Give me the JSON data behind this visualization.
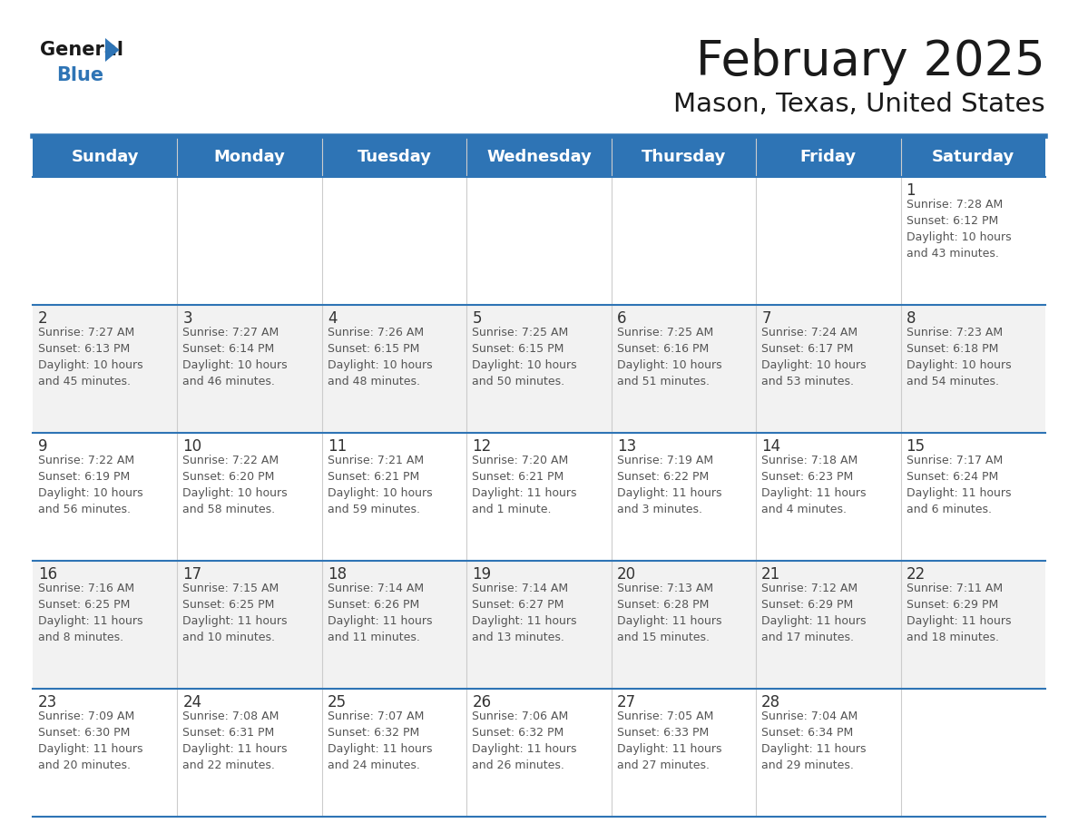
{
  "title": "February 2025",
  "subtitle": "Mason, Texas, United States",
  "header_bg_color": "#2E74B5",
  "header_text_color": "#FFFFFF",
  "day_names": [
    "Sunday",
    "Monday",
    "Tuesday",
    "Wednesday",
    "Thursday",
    "Friday",
    "Saturday"
  ],
  "bg_color": "#FFFFFF",
  "cell_bg_light": "#F2F2F2",
  "cell_bg_white": "#FFFFFF",
  "separator_color": "#2E74B5",
  "day_number_color": "#333333",
  "cell_text_color": "#555555",
  "logo_triangle_color": "#2E74B5",
  "title_fontsize": 38,
  "subtitle_fontsize": 21,
  "header_fontsize": 13,
  "day_num_fontsize": 12,
  "cell_fontsize": 9,
  "weeks": [
    [
      {
        "day": 0,
        "text": ""
      },
      {
        "day": 0,
        "text": ""
      },
      {
        "day": 0,
        "text": ""
      },
      {
        "day": 0,
        "text": ""
      },
      {
        "day": 0,
        "text": ""
      },
      {
        "day": 0,
        "text": ""
      },
      {
        "day": 1,
        "text": "Sunrise: 7:28 AM\nSunset: 6:12 PM\nDaylight: 10 hours\nand 43 minutes."
      }
    ],
    [
      {
        "day": 2,
        "text": "Sunrise: 7:27 AM\nSunset: 6:13 PM\nDaylight: 10 hours\nand 45 minutes."
      },
      {
        "day": 3,
        "text": "Sunrise: 7:27 AM\nSunset: 6:14 PM\nDaylight: 10 hours\nand 46 minutes."
      },
      {
        "day": 4,
        "text": "Sunrise: 7:26 AM\nSunset: 6:15 PM\nDaylight: 10 hours\nand 48 minutes."
      },
      {
        "day": 5,
        "text": "Sunrise: 7:25 AM\nSunset: 6:15 PM\nDaylight: 10 hours\nand 50 minutes."
      },
      {
        "day": 6,
        "text": "Sunrise: 7:25 AM\nSunset: 6:16 PM\nDaylight: 10 hours\nand 51 minutes."
      },
      {
        "day": 7,
        "text": "Sunrise: 7:24 AM\nSunset: 6:17 PM\nDaylight: 10 hours\nand 53 minutes."
      },
      {
        "day": 8,
        "text": "Sunrise: 7:23 AM\nSunset: 6:18 PM\nDaylight: 10 hours\nand 54 minutes."
      }
    ],
    [
      {
        "day": 9,
        "text": "Sunrise: 7:22 AM\nSunset: 6:19 PM\nDaylight: 10 hours\nand 56 minutes."
      },
      {
        "day": 10,
        "text": "Sunrise: 7:22 AM\nSunset: 6:20 PM\nDaylight: 10 hours\nand 58 minutes."
      },
      {
        "day": 11,
        "text": "Sunrise: 7:21 AM\nSunset: 6:21 PM\nDaylight: 10 hours\nand 59 minutes."
      },
      {
        "day": 12,
        "text": "Sunrise: 7:20 AM\nSunset: 6:21 PM\nDaylight: 11 hours\nand 1 minute."
      },
      {
        "day": 13,
        "text": "Sunrise: 7:19 AM\nSunset: 6:22 PM\nDaylight: 11 hours\nand 3 minutes."
      },
      {
        "day": 14,
        "text": "Sunrise: 7:18 AM\nSunset: 6:23 PM\nDaylight: 11 hours\nand 4 minutes."
      },
      {
        "day": 15,
        "text": "Sunrise: 7:17 AM\nSunset: 6:24 PM\nDaylight: 11 hours\nand 6 minutes."
      }
    ],
    [
      {
        "day": 16,
        "text": "Sunrise: 7:16 AM\nSunset: 6:25 PM\nDaylight: 11 hours\nand 8 minutes."
      },
      {
        "day": 17,
        "text": "Sunrise: 7:15 AM\nSunset: 6:25 PM\nDaylight: 11 hours\nand 10 minutes."
      },
      {
        "day": 18,
        "text": "Sunrise: 7:14 AM\nSunset: 6:26 PM\nDaylight: 11 hours\nand 11 minutes."
      },
      {
        "day": 19,
        "text": "Sunrise: 7:14 AM\nSunset: 6:27 PM\nDaylight: 11 hours\nand 13 minutes."
      },
      {
        "day": 20,
        "text": "Sunrise: 7:13 AM\nSunset: 6:28 PM\nDaylight: 11 hours\nand 15 minutes."
      },
      {
        "day": 21,
        "text": "Sunrise: 7:12 AM\nSunset: 6:29 PM\nDaylight: 11 hours\nand 17 minutes."
      },
      {
        "day": 22,
        "text": "Sunrise: 7:11 AM\nSunset: 6:29 PM\nDaylight: 11 hours\nand 18 minutes."
      }
    ],
    [
      {
        "day": 23,
        "text": "Sunrise: 7:09 AM\nSunset: 6:30 PM\nDaylight: 11 hours\nand 20 minutes."
      },
      {
        "day": 24,
        "text": "Sunrise: 7:08 AM\nSunset: 6:31 PM\nDaylight: 11 hours\nand 22 minutes."
      },
      {
        "day": 25,
        "text": "Sunrise: 7:07 AM\nSunset: 6:32 PM\nDaylight: 11 hours\nand 24 minutes."
      },
      {
        "day": 26,
        "text": "Sunrise: 7:06 AM\nSunset: 6:32 PM\nDaylight: 11 hours\nand 26 minutes."
      },
      {
        "day": 27,
        "text": "Sunrise: 7:05 AM\nSunset: 6:33 PM\nDaylight: 11 hours\nand 27 minutes."
      },
      {
        "day": 28,
        "text": "Sunrise: 7:04 AM\nSunset: 6:34 PM\nDaylight: 11 hours\nand 29 minutes."
      },
      {
        "day": 0,
        "text": ""
      }
    ]
  ]
}
